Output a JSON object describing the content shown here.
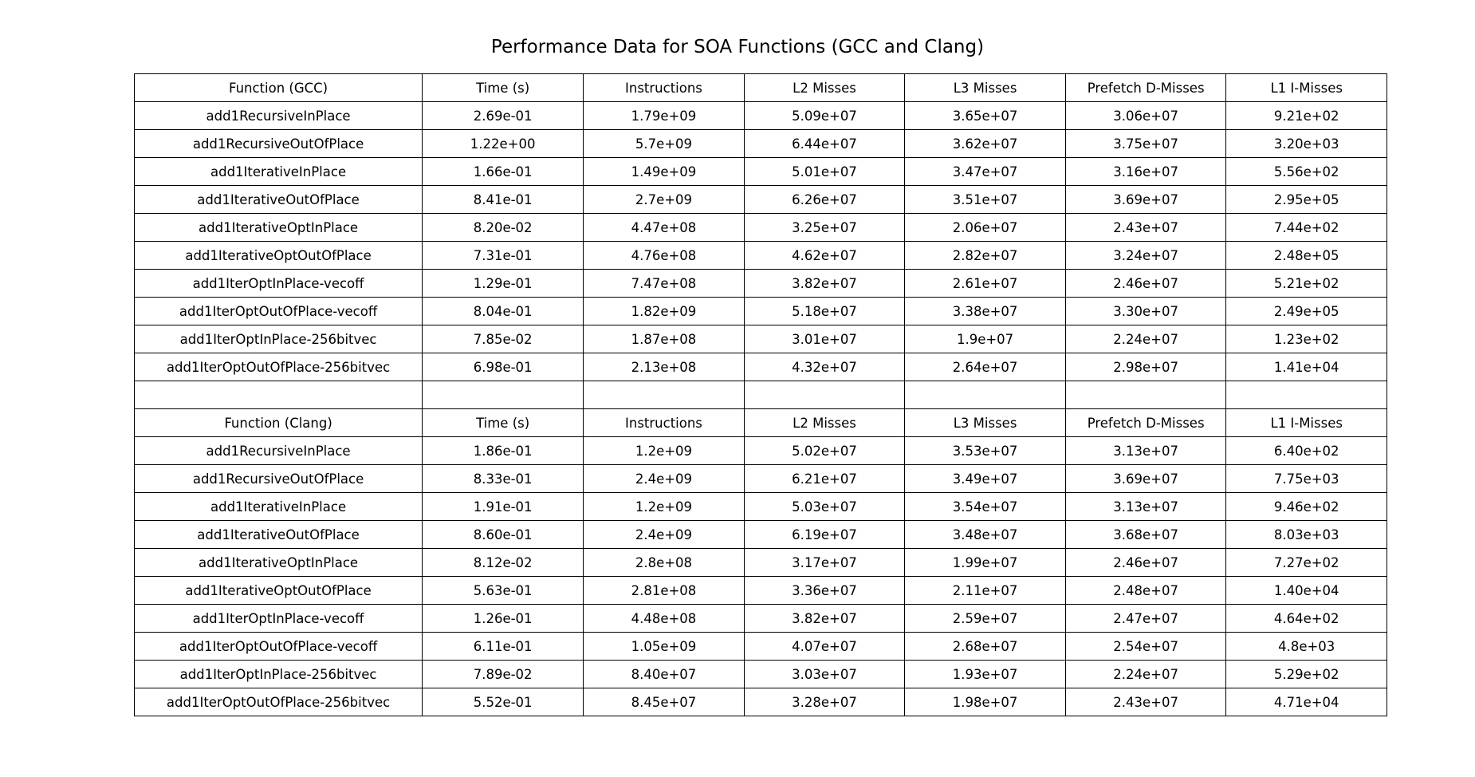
{
  "chart_data": {
    "type": "table",
    "title": "Performance Data for SOA Functions (GCC and Clang)",
    "sections": [
      {
        "header": [
          "Function (GCC)",
          "Time (s)",
          "Instructions",
          "L2 Misses",
          "L3 Misses",
          "Prefetch D-Misses",
          "L1 I-Misses"
        ],
        "rows": [
          [
            "add1RecursiveInPlace",
            "2.69e-01",
            "1.79e+09",
            "5.09e+07",
            "3.65e+07",
            "3.06e+07",
            "9.21e+02"
          ],
          [
            "add1RecursiveOutOfPlace",
            "1.22e+00",
            "5.7e+09",
            "6.44e+07",
            "3.62e+07",
            "3.75e+07",
            "3.20e+03"
          ],
          [
            "add1IterativeInPlace",
            "1.66e-01",
            "1.49e+09",
            "5.01e+07",
            "3.47e+07",
            "3.16e+07",
            "5.56e+02"
          ],
          [
            "add1IterativeOutOfPlace",
            "8.41e-01",
            "2.7e+09",
            "6.26e+07",
            "3.51e+07",
            "3.69e+07",
            "2.95e+05"
          ],
          [
            "add1IterativeOptInPlace",
            "8.20e-02",
            "4.47e+08",
            "3.25e+07",
            "2.06e+07",
            "2.43e+07",
            "7.44e+02"
          ],
          [
            "add1IterativeOptOutOfPlace",
            "7.31e-01",
            "4.76e+08",
            "4.62e+07",
            "2.82e+07",
            "3.24e+07",
            "2.48e+05"
          ],
          [
            "add1IterOptInPlace-vecoff",
            "1.29e-01",
            "7.47e+08",
            "3.82e+07",
            "2.61e+07",
            "2.46e+07",
            "5.21e+02"
          ],
          [
            "add1IterOptOutOfPlace-vecoff",
            "8.04e-01",
            "1.82e+09",
            "5.18e+07",
            "3.38e+07",
            "3.30e+07",
            "2.49e+05"
          ],
          [
            "add1IterOptInPlace-256bitvec",
            "7.85e-02",
            "1.87e+08",
            "3.01e+07",
            "1.9e+07",
            "2.24e+07",
            "1.23e+02"
          ],
          [
            "add1IterOptOutOfPlace-256bitvec",
            "6.98e-01",
            "2.13e+08",
            "4.32e+07",
            "2.64e+07",
            "2.98e+07",
            "1.41e+04"
          ]
        ]
      },
      {
        "header": [
          "Function (Clang)",
          "Time (s)",
          "Instructions",
          "L2 Misses",
          "L3 Misses",
          "Prefetch D-Misses",
          "L1 I-Misses"
        ],
        "rows": [
          [
            "add1RecursiveInPlace",
            "1.86e-01",
            "1.2e+09",
            "5.02e+07",
            "3.53e+07",
            "3.13e+07",
            "6.40e+02"
          ],
          [
            "add1RecursiveOutOfPlace",
            "8.33e-01",
            "2.4e+09",
            "6.21e+07",
            "3.49e+07",
            "3.69e+07",
            "7.75e+03"
          ],
          [
            "add1IterativeInPlace",
            "1.91e-01",
            "1.2e+09",
            "5.03e+07",
            "3.54e+07",
            "3.13e+07",
            "9.46e+02"
          ],
          [
            "add1IterativeOutOfPlace",
            "8.60e-01",
            "2.4e+09",
            "6.19e+07",
            "3.48e+07",
            "3.68e+07",
            "8.03e+03"
          ],
          [
            "add1IterativeOptInPlace",
            "8.12e-02",
            "2.8e+08",
            "3.17e+07",
            "1.99e+07",
            "2.46e+07",
            "7.27e+02"
          ],
          [
            "add1IterativeOptOutOfPlace",
            "5.63e-01",
            "2.81e+08",
            "3.36e+07",
            "2.11e+07",
            "2.48e+07",
            "1.40e+04"
          ],
          [
            "add1IterOptInPlace-vecoff",
            "1.26e-01",
            "4.48e+08",
            "3.82e+07",
            "2.59e+07",
            "2.47e+07",
            "4.64e+02"
          ],
          [
            "add1IterOptOutOfPlace-vecoff",
            "6.11e-01",
            "1.05e+09",
            "4.07e+07",
            "2.68e+07",
            "2.54e+07",
            "4.8e+03"
          ],
          [
            "add1IterOptInPlace-256bitvec",
            "7.89e-02",
            "8.40e+07",
            "3.03e+07",
            "1.93e+07",
            "2.24e+07",
            "5.29e+02"
          ],
          [
            "add1IterOptOutOfPlace-256bitvec",
            "5.52e-01",
            "8.45e+07",
            "3.28e+07",
            "1.98e+07",
            "2.43e+07",
            "4.71e+04"
          ]
        ]
      }
    ]
  }
}
